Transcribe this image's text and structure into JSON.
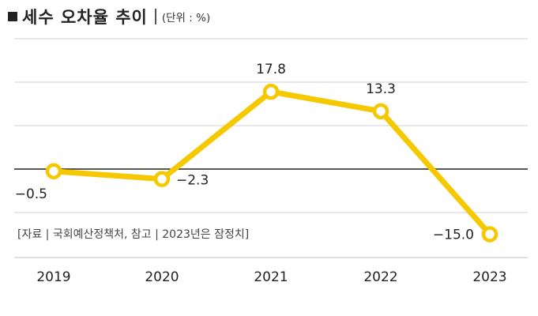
{
  "title": "세수 오차율 추이",
  "unit": "(단위 : %)",
  "source": "[자료 | 국회예산정책처, 참고 | 2023년은 잠정치]",
  "colors": {
    "line": "#F5C800",
    "marker_fill": "#ffffff",
    "grid": "#d9d9d9",
    "zero_line": "#222222",
    "baseline": "#cccccc"
  },
  "chart_data": {
    "type": "line",
    "title": "세수 오차율 추이",
    "xlabel": "",
    "ylabel": "",
    "categories": [
      "2019",
      "2020",
      "2021",
      "2022",
      "2023"
    ],
    "values": [
      -0.5,
      -2.3,
      17.8,
      13.3,
      -15.0
    ],
    "labels": [
      "−0.5",
      "−2.3",
      "17.8",
      "13.3",
      "−15.0"
    ],
    "ylim": [
      -20,
      28
    ],
    "grid": true,
    "legend": "none"
  }
}
